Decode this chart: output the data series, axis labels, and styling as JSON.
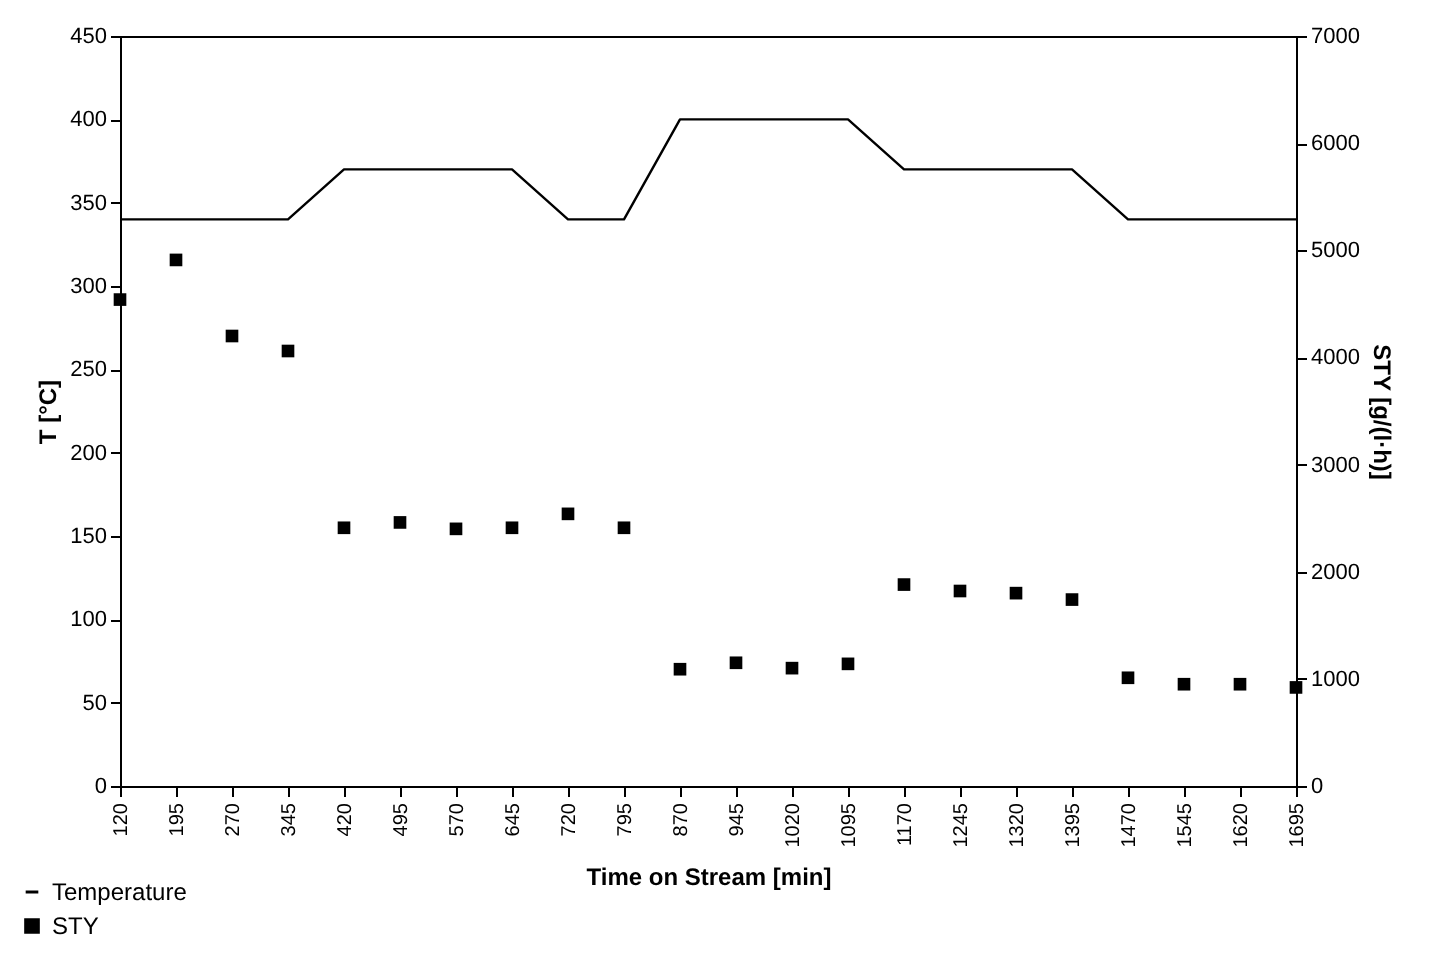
{
  "chart_data": {
    "type": "line",
    "xlabel": "Time on Stream [min]",
    "ylabel": "T [°C]",
    "y2label": "STY [g/(l·h)]",
    "x": [
      120,
      195,
      270,
      345,
      420,
      495,
      570,
      645,
      720,
      795,
      870,
      945,
      1020,
      1095,
      1170,
      1245,
      1320,
      1395,
      1470,
      1545,
      1620,
      1695
    ],
    "xlim": [
      120,
      1695
    ],
    "xticks": [
      120,
      195,
      270,
      345,
      420,
      495,
      570,
      645,
      720,
      795,
      870,
      945,
      1020,
      1095,
      1170,
      1245,
      1320,
      1395,
      1470,
      1545,
      1620,
      1695
    ],
    "ylim": [
      0,
      450
    ],
    "yticks": [
      0,
      50,
      100,
      150,
      200,
      250,
      300,
      350,
      400,
      450
    ],
    "y2lim": [
      0,
      7000
    ],
    "y2ticks": [
      0,
      1000,
      2000,
      3000,
      4000,
      5000,
      6000,
      7000
    ],
    "grid": false,
    "legend": "bottom left",
    "series": [
      {
        "name": "Temperature",
        "type": "line",
        "color": "#000000",
        "marker": "none",
        "line_style": "solid",
        "values": [
          340,
          340,
          340,
          340,
          370,
          370,
          370,
          370,
          340,
          340,
          400,
          400,
          400,
          400,
          370,
          370,
          370,
          370,
          340,
          340,
          340,
          340
        ]
      },
      {
        "name": "STY",
        "type": "scatter",
        "axis": "y2",
        "color": "#000000",
        "marker": "square",
        "values": [
          4540,
          4910,
          4200,
          4060,
          2410,
          2460,
          2400,
          2410,
          2540,
          2410,
          1090,
          1150,
          1100,
          1140,
          1880,
          1820,
          1800,
          1740,
          1010,
          950,
          950,
          920
        ]
      }
    ]
  }
}
